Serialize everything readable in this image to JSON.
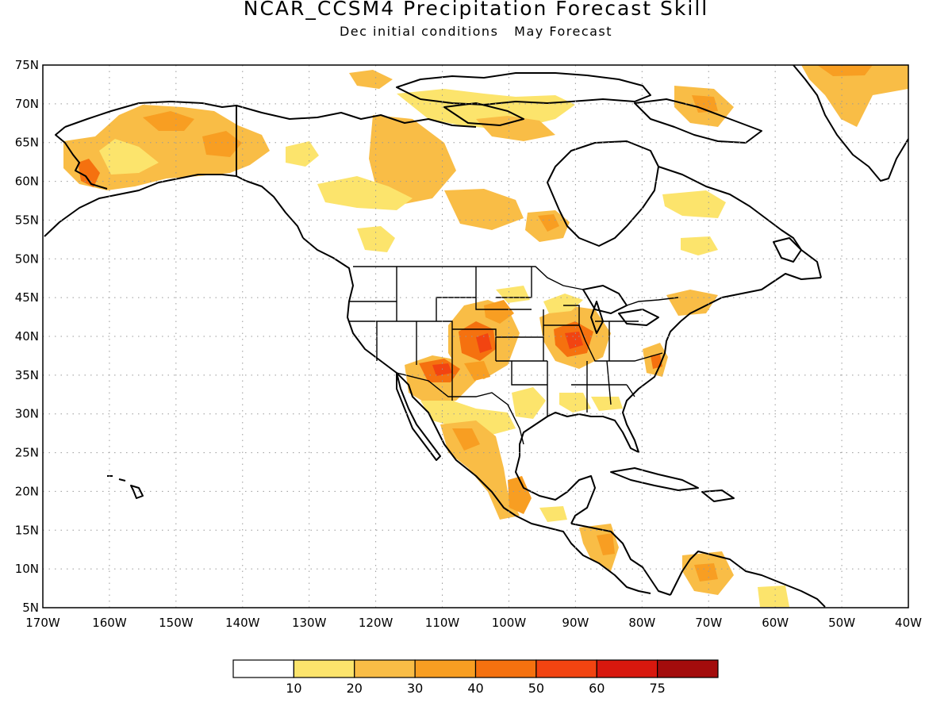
{
  "title": "NCAR_CCSM4 Precipitation Forecast Skill",
  "subtitle_left": "Dec initial conditions",
  "subtitle_right": "May Forecast",
  "map": {
    "lon_range": [
      -170,
      -40
    ],
    "lat_range": [
      5,
      75
    ],
    "lon_ticks": [
      "170W",
      "160W",
      "150W",
      "140W",
      "130W",
      "120W",
      "110W",
      "100W",
      "90W",
      "80W",
      "70W",
      "60W",
      "50W",
      "40W"
    ],
    "lat_ticks": [
      "75N",
      "70N",
      "65N",
      "60N",
      "55N",
      "50N",
      "45N",
      "40N",
      "35N",
      "30N",
      "25N",
      "20N",
      "15N",
      "10N",
      "5N"
    ],
    "grid": "dotted"
  },
  "colorbar": {
    "labels": [
      "10",
      "20",
      "30",
      "40",
      "50",
      "60",
      "75"
    ],
    "colors": [
      "#ffffff",
      "#fce46c",
      "#f9bd46",
      "#f89e22",
      "#f5710f",
      "#f24411",
      "#d8180e",
      "#a30c0c"
    ]
  }
}
